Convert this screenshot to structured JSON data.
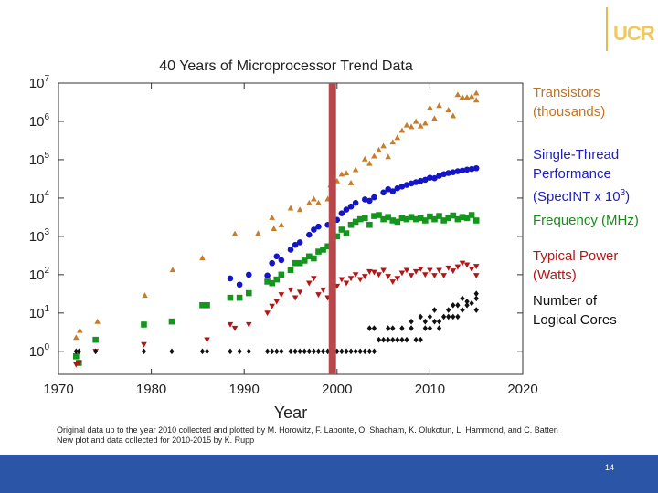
{
  "logo_text": "UCR",
  "chart_data": {
    "type": "scatter",
    "title": "40 Years of Microprocessor Trend Data",
    "xlabel": "Year",
    "ylabel": "",
    "xlim": [
      1970,
      2020
    ],
    "ylim_log10": [
      -0.6,
      7
    ],
    "y_scale": "log",
    "x_ticks": [
      1970,
      1980,
      1990,
      2000,
      2010,
      2020
    ],
    "y_ticks": [
      0,
      1,
      2,
      3,
      4,
      5,
      6,
      7
    ],
    "highlight_year": 1999.5,
    "legend_placement": "right",
    "series": [
      {
        "name": "Transistors (thousands)",
        "color": "#c87d28",
        "marker": "triangle-up",
        "points": [
          [
            1971.9,
            2.3
          ],
          [
            1972.3,
            3.5
          ],
          [
            1974.2,
            6
          ],
          [
            1979.3,
            29
          ],
          [
            1982.3,
            134
          ],
          [
            1985.5,
            275
          ],
          [
            1989,
            1180
          ],
          [
            1991.5,
            1200
          ],
          [
            1993,
            3100
          ],
          [
            1993.2,
            1600
          ],
          [
            1994,
            2000
          ],
          [
            1995,
            5500
          ],
          [
            1996,
            5000
          ],
          [
            1997,
            7500
          ],
          [
            1997.5,
            9500
          ],
          [
            1998,
            7500
          ],
          [
            1999,
            9500
          ],
          [
            1999.3,
            22000
          ],
          [
            2000,
            28000
          ],
          [
            2000.5,
            42000
          ],
          [
            2001,
            45000
          ],
          [
            2001.5,
            25000
          ],
          [
            2002,
            55000
          ],
          [
            2003,
            105000
          ],
          [
            2003.5,
            80000
          ],
          [
            2004,
            125000
          ],
          [
            2004.5,
            180000
          ],
          [
            2005,
            230000
          ],
          [
            2005.5,
            120000
          ],
          [
            2006,
            290000
          ],
          [
            2006.5,
            380000
          ],
          [
            2007,
            580000
          ],
          [
            2007.5,
            800000
          ],
          [
            2008,
            730000
          ],
          [
            2008.5,
            1000000
          ],
          [
            2009,
            760000
          ],
          [
            2009.5,
            900000
          ],
          [
            2010,
            2300000
          ],
          [
            2010.5,
            1200000
          ],
          [
            2011,
            2600000
          ],
          [
            2012,
            2000000
          ],
          [
            2012.5,
            1400000
          ],
          [
            2013,
            5000000
          ],
          [
            2013.5,
            4300000
          ],
          [
            2014,
            4300000
          ],
          [
            2014.5,
            4500000
          ],
          [
            2015,
            5500000
          ],
          [
            2015,
            3600000
          ]
        ]
      },
      {
        "name": "Single-Thread Performance (SpecINT x 10^3)",
        "color": "#1414c8",
        "marker": "circle",
        "points": [
          [
            1988.5,
            80
          ],
          [
            1989.5,
            55
          ],
          [
            1990.5,
            100
          ],
          [
            1992.5,
            95
          ],
          [
            1993,
            200
          ],
          [
            1993.5,
            300
          ],
          [
            1994,
            240
          ],
          [
            1995,
            450
          ],
          [
            1995.5,
            600
          ],
          [
            1996,
            700
          ],
          [
            1997,
            1100
          ],
          [
            1997.5,
            1500
          ],
          [
            1998,
            1800
          ],
          [
            1999,
            2000
          ],
          [
            1999.5,
            2400
          ],
          [
            2000,
            2700
          ],
          [
            2000.5,
            4000
          ],
          [
            2001,
            5000
          ],
          [
            2001.5,
            6000
          ],
          [
            2002,
            7500
          ],
          [
            2003,
            9200
          ],
          [
            2003.5,
            8500
          ],
          [
            2004,
            10500
          ],
          [
            2005,
            14000
          ],
          [
            2005.5,
            17000
          ],
          [
            2006,
            15000
          ],
          [
            2006.5,
            18000
          ],
          [
            2007,
            20000
          ],
          [
            2007.5,
            22000
          ],
          [
            2008,
            24000
          ],
          [
            2008.5,
            26000
          ],
          [
            2009,
            28000
          ],
          [
            2009.5,
            30000
          ],
          [
            2010,
            34000
          ],
          [
            2010.5,
            33000
          ],
          [
            2011,
            38000
          ],
          [
            2011.5,
            42000
          ],
          [
            2012,
            45000
          ],
          [
            2012.5,
            47000
          ],
          [
            2013,
            50000
          ],
          [
            2013.5,
            52000
          ],
          [
            2014,
            55000
          ],
          [
            2014.5,
            57000
          ],
          [
            2015,
            60000
          ]
        ]
      },
      {
        "name": "Frequency (MHz)",
        "color": "#14961e",
        "marker": "square",
        "points": [
          [
            1971.9,
            0.74
          ],
          [
            1972.2,
            0.5
          ],
          [
            1974,
            2
          ],
          [
            1979.2,
            5
          ],
          [
            1982.2,
            6
          ],
          [
            1985.5,
            16
          ],
          [
            1986,
            16
          ],
          [
            1988.5,
            25
          ],
          [
            1989.5,
            25
          ],
          [
            1990.5,
            33
          ],
          [
            1992.5,
            66
          ],
          [
            1993,
            60
          ],
          [
            1993.5,
            75
          ],
          [
            1994,
            100
          ],
          [
            1995,
            133
          ],
          [
            1995.5,
            200
          ],
          [
            1996,
            200
          ],
          [
            1996.5,
            233
          ],
          [
            1997,
            300
          ],
          [
            1997.5,
            266
          ],
          [
            1998,
            400
          ],
          [
            1998.5,
            450
          ],
          [
            1999,
            550
          ],
          [
            1999.5,
            800
          ],
          [
            2000,
            1000
          ],
          [
            2000.5,
            1500
          ],
          [
            2001,
            1200
          ],
          [
            2001.5,
            2000
          ],
          [
            2002,
            2400
          ],
          [
            2002.5,
            2800
          ],
          [
            2003,
            3000
          ],
          [
            2003.5,
            2000
          ],
          [
            2004,
            3400
          ],
          [
            2004.5,
            3600
          ],
          [
            2005,
            2800
          ],
          [
            2005.5,
            3200
          ],
          [
            2006,
            2600
          ],
          [
            2006.5,
            2400
          ],
          [
            2007,
            3000
          ],
          [
            2007.5,
            2800
          ],
          [
            2008,
            3200
          ],
          [
            2008.5,
            2800
          ],
          [
            2009,
            3000
          ],
          [
            2009.5,
            2600
          ],
          [
            2010,
            3300
          ],
          [
            2010.5,
            2800
          ],
          [
            2011,
            3400
          ],
          [
            2011.5,
            2600
          ],
          [
            2012,
            3000
          ],
          [
            2012.5,
            3500
          ],
          [
            2013,
            2800
          ],
          [
            2013.5,
            3200
          ],
          [
            2014,
            3000
          ],
          [
            2014.5,
            3600
          ],
          [
            2015,
            2600
          ]
        ]
      },
      {
        "name": "Typical Power (Watts)",
        "color": "#b01818",
        "marker": "triangle-down",
        "points": [
          [
            1971.9,
            0.45
          ],
          [
            1972.2,
            0.5
          ],
          [
            1974,
            1
          ],
          [
            1979.2,
            1.5
          ],
          [
            1986,
            2
          ],
          [
            1988.5,
            5
          ],
          [
            1989,
            4
          ],
          [
            1990.5,
            5
          ],
          [
            1992.5,
            10
          ],
          [
            1993,
            15
          ],
          [
            1993.5,
            20
          ],
          [
            1994,
            30
          ],
          [
            1995,
            40
          ],
          [
            1995.5,
            25
          ],
          [
            1996,
            35
          ],
          [
            1997,
            60
          ],
          [
            1997.5,
            80
          ],
          [
            1998,
            30
          ],
          [
            1998.5,
            40
          ],
          [
            1999,
            25
          ],
          [
            1999.5,
            45
          ],
          [
            2000,
            50
          ],
          [
            2000.5,
            75
          ],
          [
            2001,
            60
          ],
          [
            2001.5,
            80
          ],
          [
            2002,
            100
          ],
          [
            2002.5,
            75
          ],
          [
            2003,
            90
          ],
          [
            2003.5,
            120
          ],
          [
            2004,
            115
          ],
          [
            2004.5,
            100
          ],
          [
            2005,
            130
          ],
          [
            2005.5,
            90
          ],
          [
            2006,
            65
          ],
          [
            2006.5,
            80
          ],
          [
            2007,
            110
          ],
          [
            2007.5,
            130
          ],
          [
            2008,
            95
          ],
          [
            2008.5,
            120
          ],
          [
            2009,
            140
          ],
          [
            2009.5,
            100
          ],
          [
            2010,
            130
          ],
          [
            2010.5,
            95
          ],
          [
            2011,
            130
          ],
          [
            2011.5,
            95
          ],
          [
            2012,
            150
          ],
          [
            2012.5,
            125
          ],
          [
            2013,
            160
          ],
          [
            2013.5,
            200
          ],
          [
            2014,
            180
          ],
          [
            2014.5,
            140
          ],
          [
            2015,
            165
          ],
          [
            2015,
            95
          ]
        ]
      },
      {
        "name": "Number of Logical Cores",
        "color": "#111111",
        "marker": "diamond",
        "points": [
          [
            1971.9,
            1
          ],
          [
            1972.2,
            1
          ],
          [
            1974,
            1
          ],
          [
            1979.2,
            1
          ],
          [
            1982.2,
            1
          ],
          [
            1985.5,
            1
          ],
          [
            1986,
            1
          ],
          [
            1988.5,
            1
          ],
          [
            1989.5,
            1
          ],
          [
            1990.5,
            1
          ],
          [
            1992.5,
            1
          ],
          [
            1993,
            1
          ],
          [
            1993.5,
            1
          ],
          [
            1994,
            1
          ],
          [
            1995,
            1
          ],
          [
            1995.5,
            1
          ],
          [
            1996,
            1
          ],
          [
            1996.5,
            1
          ],
          [
            1997,
            1
          ],
          [
            1997.5,
            1
          ],
          [
            1998,
            1
          ],
          [
            1998.5,
            1
          ],
          [
            1999,
            1
          ],
          [
            1999.5,
            1
          ],
          [
            2000,
            1
          ],
          [
            2000.5,
            1
          ],
          [
            2001,
            1
          ],
          [
            2001.5,
            1
          ],
          [
            2002,
            1
          ],
          [
            2002.5,
            1
          ],
          [
            2003,
            1
          ],
          [
            2003.5,
            1
          ],
          [
            2004,
            1
          ],
          [
            2004.5,
            2
          ],
          [
            2005,
            2
          ],
          [
            2005.5,
            2
          ],
          [
            2006,
            2
          ],
          [
            2006.5,
            2
          ],
          [
            2007,
            2
          ],
          [
            2007.5,
            2
          ],
          [
            2008,
            4
          ],
          [
            2008.5,
            2
          ],
          [
            2009,
            2
          ],
          [
            2009.5,
            4
          ],
          [
            2010,
            4
          ],
          [
            2010.5,
            6
          ],
          [
            2011,
            4
          ],
          [
            2011.5,
            8
          ],
          [
            2012,
            8
          ],
          [
            2012.5,
            8
          ],
          [
            2013,
            8
          ],
          [
            2013.5,
            12
          ],
          [
            2014,
            16
          ],
          [
            2014.5,
            18
          ],
          [
            2015,
            32
          ],
          [
            2005.5,
            4
          ],
          [
            2006,
            4
          ],
          [
            2007,
            4
          ],
          [
            2008,
            6
          ],
          [
            2009,
            8
          ],
          [
            2009.5,
            6
          ],
          [
            2010,
            8
          ],
          [
            2011,
            6
          ],
          [
            2012,
            12
          ],
          [
            2013,
            16
          ],
          [
            2014,
            20
          ],
          [
            2015,
            24
          ],
          [
            2003.5,
            4
          ],
          [
            2004,
            4
          ],
          [
            2010.5,
            12
          ],
          [
            2012.5,
            16
          ],
          [
            2013.5,
            24
          ],
          [
            2015,
            12
          ]
        ]
      }
    ]
  },
  "legend": [
    {
      "text": "Transistors\n(thousands)"
    },
    {
      "text": "Single-Thread\nPerformance\n(SpecINT x 10",
      "sup": "3",
      "tail": ")"
    },
    {
      "text": "Frequency (MHz)"
    },
    {
      "text": "Typical Power\n(Watts)"
    },
    {
      "text": "Number of\nLogical Cores"
    }
  ],
  "caption": {
    "line1": "Original data up to the year 2010 collected and plotted by M. Horowitz, F. Labonte, O. Shacham, K. Olukotun, L. Hammond, and C. Batten",
    "line2": "New plot and data collected for 2010-2015 by K. Rupp"
  },
  "slide_number": "14"
}
